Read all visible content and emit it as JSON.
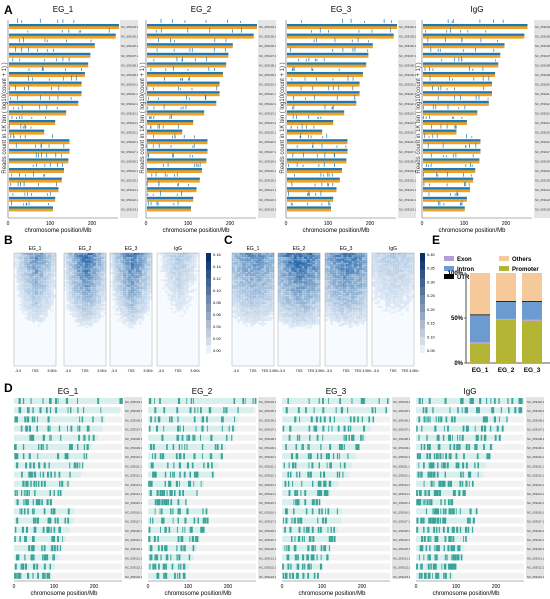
{
  "panels": {
    "A": {
      "letter": "A",
      "samples": [
        "EG_1",
        "EG_2",
        "EG_3",
        "IgG"
      ],
      "ylabel": "Reads count in 1K bin ( log10(count + 1) )",
      "xlabel": "chromosome position/Mb",
      "xticks": [
        "0",
        "100",
        "200"
      ],
      "chromosomes": [
        "NC_059104.1",
        "NC_059105.1",
        "NC_059106.1",
        "NC_059107.1",
        "NC_059108.1",
        "NC_059109.1",
        "NC_059110.1",
        "NC_059111.1",
        "NC_059112.1",
        "NC_059113.1",
        "NC_059114.1",
        "NC_059115.1",
        "NC_059116.1",
        "NC_059117.1",
        "NC_059118.1",
        "NC_059119.1",
        "NC_059120.1",
        "NC_059121.1",
        "NC_059122.1",
        "NC_059123.1"
      ],
      "colors": {
        "series1": "#1f77b4",
        "series2": "#f0a020"
      }
    },
    "B": {
      "letter": "B",
      "samples": [
        "EG_1",
        "EG_2",
        "EG_3",
        "IgG"
      ],
      "xticks": [
        "-3.0",
        "TSS",
        "3.0Kb"
      ],
      "colorbar_ticks": [
        "0.16",
        "0.14",
        "0.12",
        "0.10",
        "0.08",
        "0.06",
        "0.04",
        "0.02",
        "0.00"
      ]
    },
    "C": {
      "letter": "C",
      "samples": [
        "EG_1",
        "EG_2",
        "EG_3",
        "IgG"
      ],
      "xticks": [
        "-3.0",
        "TSS",
        "TES 3.0Kb"
      ],
      "colorbar_ticks": [
        "0.40",
        "0.35",
        "0.30",
        "0.25",
        "0.20",
        "0.15",
        "0.10",
        "0.05"
      ]
    },
    "D": {
      "letter": "D",
      "samples": [
        "EG_1",
        "EG_2",
        "EG_3",
        "IgG"
      ],
      "xlabel": "chromosome position/Mb",
      "xticks": [
        "0",
        "100",
        "200"
      ],
      "colors": {
        "peak": "#3aa39a"
      }
    },
    "E": {
      "letter": "E",
      "legend": [
        "Exon",
        "Others",
        "Intron",
        "Promoter",
        "UTR"
      ],
      "categories": [
        "EG_1",
        "EG_2",
        "EG_3"
      ],
      "yticks": [
        "100%",
        "50%",
        "0%"
      ],
      "colors": {
        "Exon": "#b39ddb",
        "Intron": "#6b9bd1",
        "UTR": "#000000",
        "Others": "#f5c99a",
        "Promoter": "#b5b535"
      }
    }
  },
  "chart_data": {
    "type": "bar",
    "stacked": true,
    "categories": [
      "EG_1",
      "EG_2",
      "EG_3"
    ],
    "series": [
      {
        "name": "Promoter",
        "values": [
          22,
          48,
          47
        ]
      },
      {
        "name": "Exon",
        "values": [
          1,
          1,
          1
        ]
      },
      {
        "name": "Intron",
        "values": [
          30,
          19,
          20
        ]
      },
      {
        "name": "UTR",
        "values": [
          1,
          1,
          1
        ]
      },
      {
        "name": "Others",
        "values": [
          46,
          31,
          31
        ]
      }
    ],
    "ylim": [
      0,
      100
    ]
  }
}
